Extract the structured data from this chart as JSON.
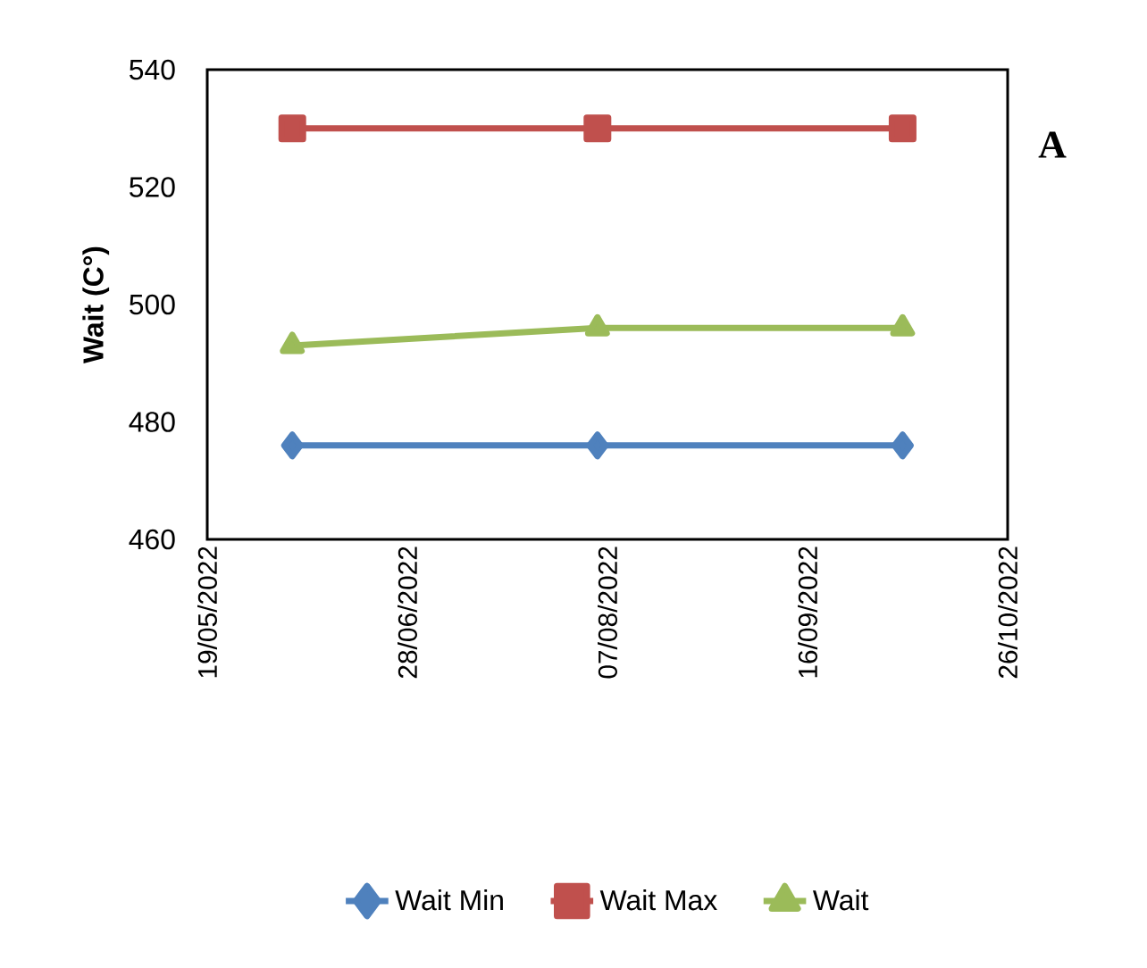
{
  "chart_data": {
    "type": "line",
    "ylabel": "Wait (C°)",
    "x": [
      "2022-06-05",
      "2022-08-05",
      "2022-10-05"
    ],
    "series": [
      {
        "name": "Wait Min",
        "color": "#4f81bd",
        "marker": "diamond",
        "values": [
          476,
          476,
          476
        ]
      },
      {
        "name": "Wait Max",
        "color": "#c0504d",
        "marker": "square",
        "values": [
          530,
          530,
          530
        ]
      },
      {
        "name": "Wait",
        "color": "#9bbb59",
        "marker": "triangle",
        "values": [
          493,
          496,
          496
        ]
      }
    ],
    "xlim": [
      "2022-05-19",
      "2022-10-26"
    ],
    "xticks": [
      {
        "value": "2022-05-19",
        "label": "19/05/2022"
      },
      {
        "value": "2022-06-28",
        "label": "28/06/2022"
      },
      {
        "value": "2022-08-07",
        "label": "07/08/2022"
      },
      {
        "value": "2022-09-16",
        "label": "16/09/2022"
      },
      {
        "value": "2022-10-26",
        "label": "26/10/2022"
      }
    ],
    "ylim": [
      460,
      540
    ],
    "yticks": [
      460,
      480,
      500,
      520,
      540
    ],
    "legend": "bottom",
    "grid": false,
    "annotations": [
      "A"
    ]
  }
}
